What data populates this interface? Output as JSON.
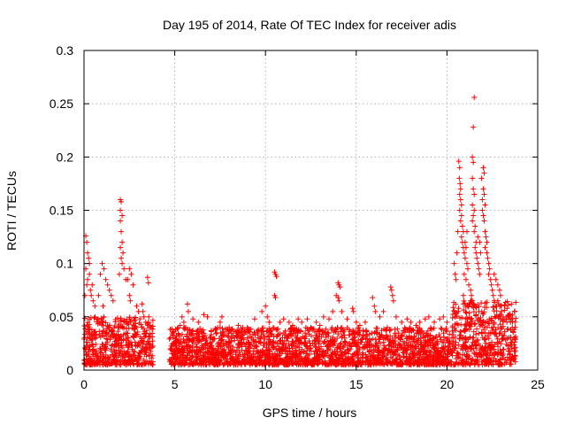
{
  "chart_data": {
    "type": "scatter",
    "title": "Day 195 of 2014, Rate Of TEC Index for receiver adis",
    "xlabel": "GPS time / hours",
    "ylabel": "ROTI / TECUs",
    "xlim": [
      0,
      25
    ],
    "ylim": [
      0,
      0.3
    ],
    "x_ticks": [
      0,
      5,
      10,
      15,
      20,
      25
    ],
    "y_ticks": [
      0,
      0.05,
      0.1,
      0.15,
      0.2,
      0.25,
      0.3
    ],
    "x_tick_labels": [
      "0",
      "5",
      "10",
      "15",
      "20",
      "25"
    ],
    "y_tick_labels": [
      "0",
      "0.05",
      "0.1",
      "0.15",
      "0.2",
      "0.25",
      "0.3"
    ],
    "grid": true,
    "marker": "+",
    "color": "#ff0000",
    "series": [
      {
        "name": "ROTI",
        "segments": [
          {
            "x_range": [
              0.0,
              3.8
            ],
            "base_max": 0.045
          },
          {
            "x_range": [
              4.7,
              6.9
            ],
            "base_max": 0.035
          },
          {
            "x_range": [
              6.9,
              20.3
            ],
            "base_max": 0.035
          },
          {
            "x_range": [
              20.3,
              23.8
            ],
            "base_max": 0.06
          }
        ],
        "points": [
          [
            0.1,
            0.126
          ],
          [
            0.15,
            0.12
          ],
          [
            0.2,
            0.11
          ],
          [
            0.25,
            0.105
          ],
          [
            0.1,
            0.095
          ],
          [
            0.3,
            0.09
          ],
          [
            0.2,
            0.085
          ],
          [
            0.15,
            0.08
          ],
          [
            0.35,
            0.075
          ],
          [
            0.4,
            0.07
          ],
          [
            0.5,
            0.065
          ],
          [
            0.6,
            0.06
          ],
          [
            0.05,
            0.07
          ],
          [
            0.3,
            0.1
          ],
          [
            0.45,
            0.08
          ],
          [
            1.0,
            0.1
          ],
          [
            1.1,
            0.095
          ],
          [
            0.9,
            0.09
          ],
          [
            1.2,
            0.085
          ],
          [
            1.3,
            0.08
          ],
          [
            0.8,
            0.07
          ],
          [
            1.4,
            0.075
          ],
          [
            1.5,
            0.07
          ],
          [
            1.6,
            0.065
          ],
          [
            1.05,
            0.06
          ],
          [
            2.0,
            0.16
          ],
          [
            2.05,
            0.158
          ],
          [
            2.0,
            0.15
          ],
          [
            2.1,
            0.145
          ],
          [
            2.0,
            0.14
          ],
          [
            2.05,
            0.13
          ],
          [
            2.1,
            0.12
          ],
          [
            2.0,
            0.115
          ],
          [
            2.15,
            0.11
          ],
          [
            2.05,
            0.105
          ],
          [
            2.1,
            0.1
          ],
          [
            2.2,
            0.095
          ],
          [
            1.95,
            0.09
          ],
          [
            2.3,
            0.085
          ],
          [
            2.5,
            0.095
          ],
          [
            2.6,
            0.09
          ],
          [
            2.4,
            0.085
          ],
          [
            2.7,
            0.08
          ],
          [
            2.5,
            0.07
          ],
          [
            2.55,
            0.065
          ],
          [
            3.2,
            0.062
          ],
          [
            3.25,
            0.055
          ],
          [
            3.3,
            0.05
          ],
          [
            3.5,
            0.087
          ],
          [
            3.55,
            0.082
          ],
          [
            3.4,
            0.045
          ],
          [
            3.6,
            0.04
          ],
          [
            2.9,
            0.06
          ],
          [
            3.0,
            0.055
          ],
          [
            5.4,
            0.05
          ],
          [
            5.5,
            0.045
          ],
          [
            5.6,
            0.04
          ],
          [
            5.3,
            0.042
          ],
          [
            5.7,
            0.062
          ],
          [
            5.75,
            0.055
          ],
          [
            6.0,
            0.048
          ],
          [
            6.3,
            0.045
          ],
          [
            6.6,
            0.052
          ],
          [
            6.8,
            0.05
          ],
          [
            7.5,
            0.045
          ],
          [
            7.6,
            0.05
          ],
          [
            8.0,
            0.04
          ],
          [
            8.5,
            0.042
          ],
          [
            9.0,
            0.04
          ],
          [
            9.4,
            0.048
          ],
          [
            9.8,
            0.055
          ],
          [
            10.0,
            0.06
          ],
          [
            10.1,
            0.05
          ],
          [
            10.2,
            0.045
          ],
          [
            10.5,
            0.092
          ],
          [
            10.55,
            0.09
          ],
          [
            10.6,
            0.088
          ],
          [
            10.5,
            0.07
          ],
          [
            10.55,
            0.068
          ],
          [
            10.8,
            0.045
          ],
          [
            11.0,
            0.048
          ],
          [
            11.3,
            0.045
          ],
          [
            11.5,
            0.042
          ],
          [
            11.8,
            0.048
          ],
          [
            12.0,
            0.045
          ],
          [
            12.3,
            0.048
          ],
          [
            12.5,
            0.04
          ],
          [
            12.8,
            0.045
          ],
          [
            13.0,
            0.042
          ],
          [
            13.2,
            0.05
          ],
          [
            13.5,
            0.048
          ],
          [
            13.7,
            0.055
          ],
          [
            13.9,
            0.07
          ],
          [
            14.0,
            0.082
          ],
          [
            14.05,
            0.08
          ],
          [
            14.1,
            0.078
          ],
          [
            14.0,
            0.068
          ],
          [
            14.05,
            0.065
          ],
          [
            14.2,
            0.055
          ],
          [
            14.5,
            0.048
          ],
          [
            14.8,
            0.058
          ],
          [
            14.85,
            0.055
          ],
          [
            15.0,
            0.045
          ],
          [
            15.2,
            0.042
          ],
          [
            15.5,
            0.045
          ],
          [
            15.9,
            0.068
          ],
          [
            16.0,
            0.06
          ],
          [
            16.05,
            0.055
          ],
          [
            16.3,
            0.05
          ],
          [
            16.5,
            0.055
          ],
          [
            16.9,
            0.078
          ],
          [
            16.95,
            0.075
          ],
          [
            17.0,
            0.07
          ],
          [
            17.05,
            0.065
          ],
          [
            17.2,
            0.05
          ],
          [
            17.5,
            0.045
          ],
          [
            17.8,
            0.048
          ],
          [
            18.0,
            0.045
          ],
          [
            18.3,
            0.042
          ],
          [
            18.5,
            0.045
          ],
          [
            18.8,
            0.048
          ],
          [
            19.0,
            0.05
          ],
          [
            19.3,
            0.045
          ],
          [
            19.6,
            0.048
          ],
          [
            19.8,
            0.05
          ],
          [
            20.0,
            0.045
          ],
          [
            20.3,
            0.04
          ],
          [
            20.4,
            0.1
          ],
          [
            20.45,
            0.09
          ],
          [
            20.5,
            0.085
          ],
          [
            20.55,
            0.11
          ],
          [
            20.6,
            0.13
          ],
          [
            20.65,
            0.196
          ],
          [
            20.7,
            0.19
          ],
          [
            20.68,
            0.18
          ],
          [
            20.72,
            0.175
          ],
          [
            20.75,
            0.17
          ],
          [
            20.7,
            0.165
          ],
          [
            20.75,
            0.16
          ],
          [
            20.8,
            0.155
          ],
          [
            20.7,
            0.15
          ],
          [
            20.8,
            0.145
          ],
          [
            20.75,
            0.14
          ],
          [
            20.85,
            0.135
          ],
          [
            20.9,
            0.13
          ],
          [
            20.8,
            0.125
          ],
          [
            20.85,
            0.12
          ],
          [
            20.9,
            0.115
          ],
          [
            20.95,
            0.11
          ],
          [
            21.0,
            0.12
          ],
          [
            21.05,
            0.115
          ],
          [
            21.1,
            0.13
          ],
          [
            21.0,
            0.105
          ],
          [
            21.1,
            0.1
          ],
          [
            21.15,
            0.095
          ],
          [
            20.95,
            0.09
          ],
          [
            21.05,
            0.085
          ],
          [
            21.2,
            0.08
          ],
          [
            21.3,
            0.075
          ],
          [
            21.35,
            0.07
          ],
          [
            21.4,
            0.065
          ],
          [
            20.9,
            0.07
          ],
          [
            21.5,
            0.256
          ],
          [
            21.45,
            0.228
          ],
          [
            21.4,
            0.2
          ],
          [
            21.45,
            0.195
          ],
          [
            21.4,
            0.18
          ],
          [
            21.45,
            0.17
          ],
          [
            21.5,
            0.165
          ],
          [
            21.4,
            0.155
          ],
          [
            21.5,
            0.15
          ],
          [
            21.45,
            0.145
          ],
          [
            21.4,
            0.14
          ],
          [
            21.55,
            0.135
          ],
          [
            21.5,
            0.13
          ],
          [
            21.6,
            0.12
          ],
          [
            21.55,
            0.115
          ],
          [
            21.6,
            0.11
          ],
          [
            21.65,
            0.105
          ],
          [
            21.7,
            0.1
          ],
          [
            21.75,
            0.095
          ],
          [
            21.8,
            0.09
          ],
          [
            21.9,
            0.18
          ],
          [
            21.95,
            0.16
          ],
          [
            22.0,
            0.19
          ],
          [
            22.05,
            0.185
          ],
          [
            22.0,
            0.17
          ],
          [
            22.05,
            0.165
          ],
          [
            22.1,
            0.155
          ],
          [
            21.95,
            0.15
          ],
          [
            22.0,
            0.145
          ],
          [
            22.05,
            0.14
          ],
          [
            22.1,
            0.13
          ],
          [
            22.15,
            0.125
          ],
          [
            22.2,
            0.12
          ],
          [
            22.1,
            0.115
          ],
          [
            22.2,
            0.11
          ],
          [
            22.25,
            0.105
          ],
          [
            22.3,
            0.1
          ],
          [
            22.35,
            0.095
          ],
          [
            22.3,
            0.09
          ],
          [
            22.4,
            0.085
          ],
          [
            22.45,
            0.08
          ],
          [
            22.5,
            0.075
          ],
          [
            22.55,
            0.07
          ],
          [
            22.6,
            0.065
          ],
          [
            22.7,
            0.06
          ],
          [
            22.8,
            0.065
          ],
          [
            22.9,
            0.06
          ],
          [
            23.0,
            0.055
          ],
          [
            23.1,
            0.05
          ],
          [
            23.2,
            0.048
          ],
          [
            23.3,
            0.045
          ],
          [
            23.4,
            0.05
          ],
          [
            23.5,
            0.045
          ],
          [
            23.6,
            0.04
          ],
          [
            23.7,
            0.038
          ],
          [
            21.7,
            0.125
          ],
          [
            21.8,
            0.12
          ],
          [
            21.85,
            0.11
          ],
          [
            22.6,
            0.09
          ],
          [
            22.7,
            0.085
          ],
          [
            22.8,
            0.08
          ],
          [
            22.9,
            0.075
          ],
          [
            22.95,
            0.07
          ],
          [
            21.2,
            0.06
          ],
          [
            21.3,
            0.065
          ]
        ]
      }
    ]
  }
}
